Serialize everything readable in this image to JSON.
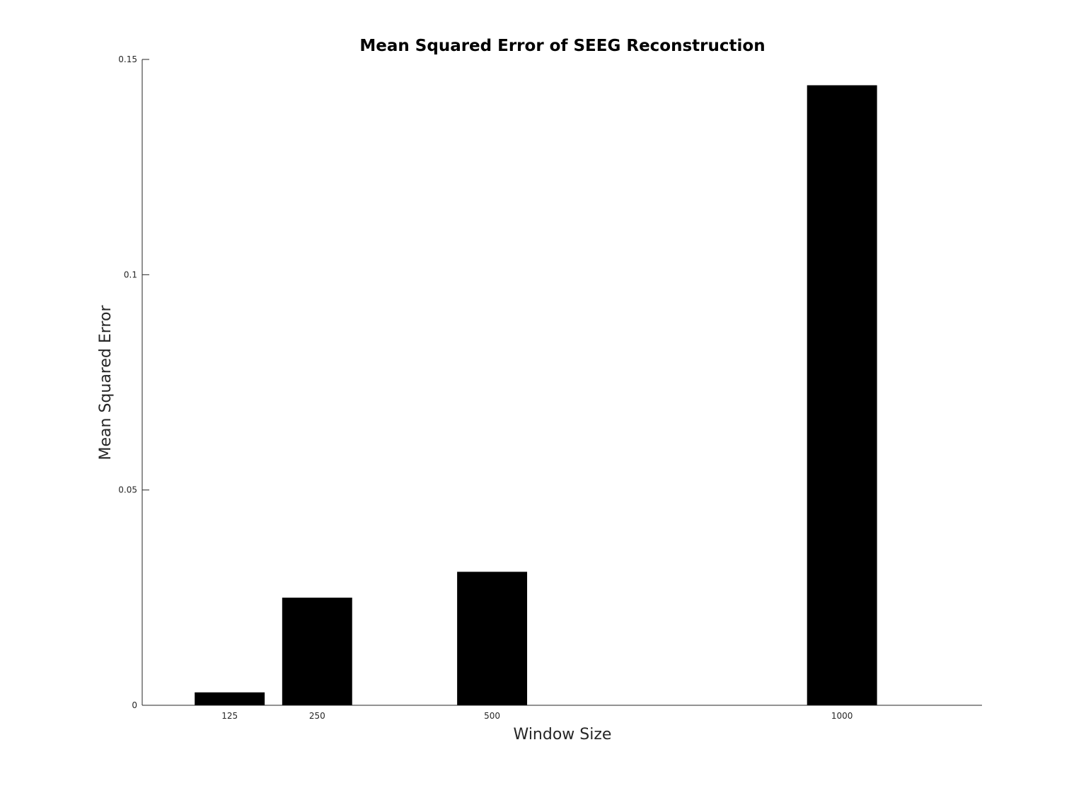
{
  "chart_data": {
    "type": "bar",
    "title": "Mean Squared Error of SEEG Reconstruction",
    "xlabel": "Window Size",
    "ylabel": "Mean Squared Error",
    "x": [
      125,
      250,
      500,
      1000
    ],
    "x_tick_labels": [
      "125",
      "250",
      "500",
      "1000"
    ],
    "values": [
      0.003,
      0.025,
      0.031,
      0.144
    ],
    "xlim": [
      0,
      1200
    ],
    "ylim": [
      0,
      0.15
    ],
    "y_ticks": [
      0,
      0.05,
      0.1,
      0.15
    ],
    "y_tick_labels": [
      "0",
      "0.05",
      "0.1",
      "0.15"
    ],
    "bar_width": 100,
    "bar_color": "#000000",
    "grid": false,
    "legend": "none"
  }
}
